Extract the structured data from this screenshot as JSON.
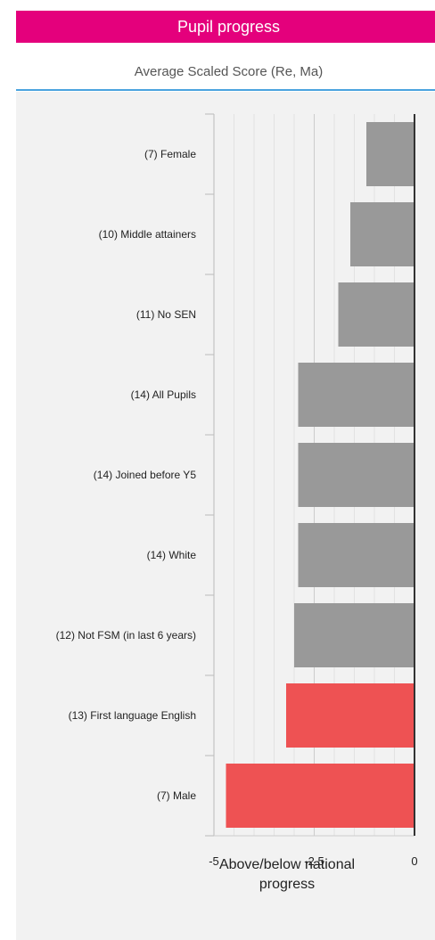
{
  "header": {
    "title": "Pupil progress",
    "color": "#e4007c"
  },
  "subtitle": "Average Scaled Score (Re, Ma)",
  "chart_data": {
    "type": "bar",
    "orientation": "horizontal",
    "categories": [
      "(7) Female",
      "(10) Middle attainers",
      "(11) No SEN",
      "(14) All Pupils",
      "(14) Joined before Y5",
      "(14) White",
      "(12) Not FSM (in last 6 years)",
      "(13) First language English",
      "(7) Male"
    ],
    "values": [
      -1.2,
      -1.6,
      -1.9,
      -2.9,
      -2.9,
      -2.9,
      -3.0,
      -3.2,
      -4.7
    ],
    "bar_colors": [
      "#999999",
      "#999999",
      "#999999",
      "#999999",
      "#999999",
      "#999999",
      "#999999",
      "#ee5253",
      "#ee5253"
    ],
    "xlim": [
      -5,
      0
    ],
    "xticks": [
      "-5",
      "-2.5",
      "0"
    ],
    "xtick_values": [
      -5,
      -2.5,
      0
    ],
    "xlabel": "Above/below national progress",
    "grid": true
  }
}
